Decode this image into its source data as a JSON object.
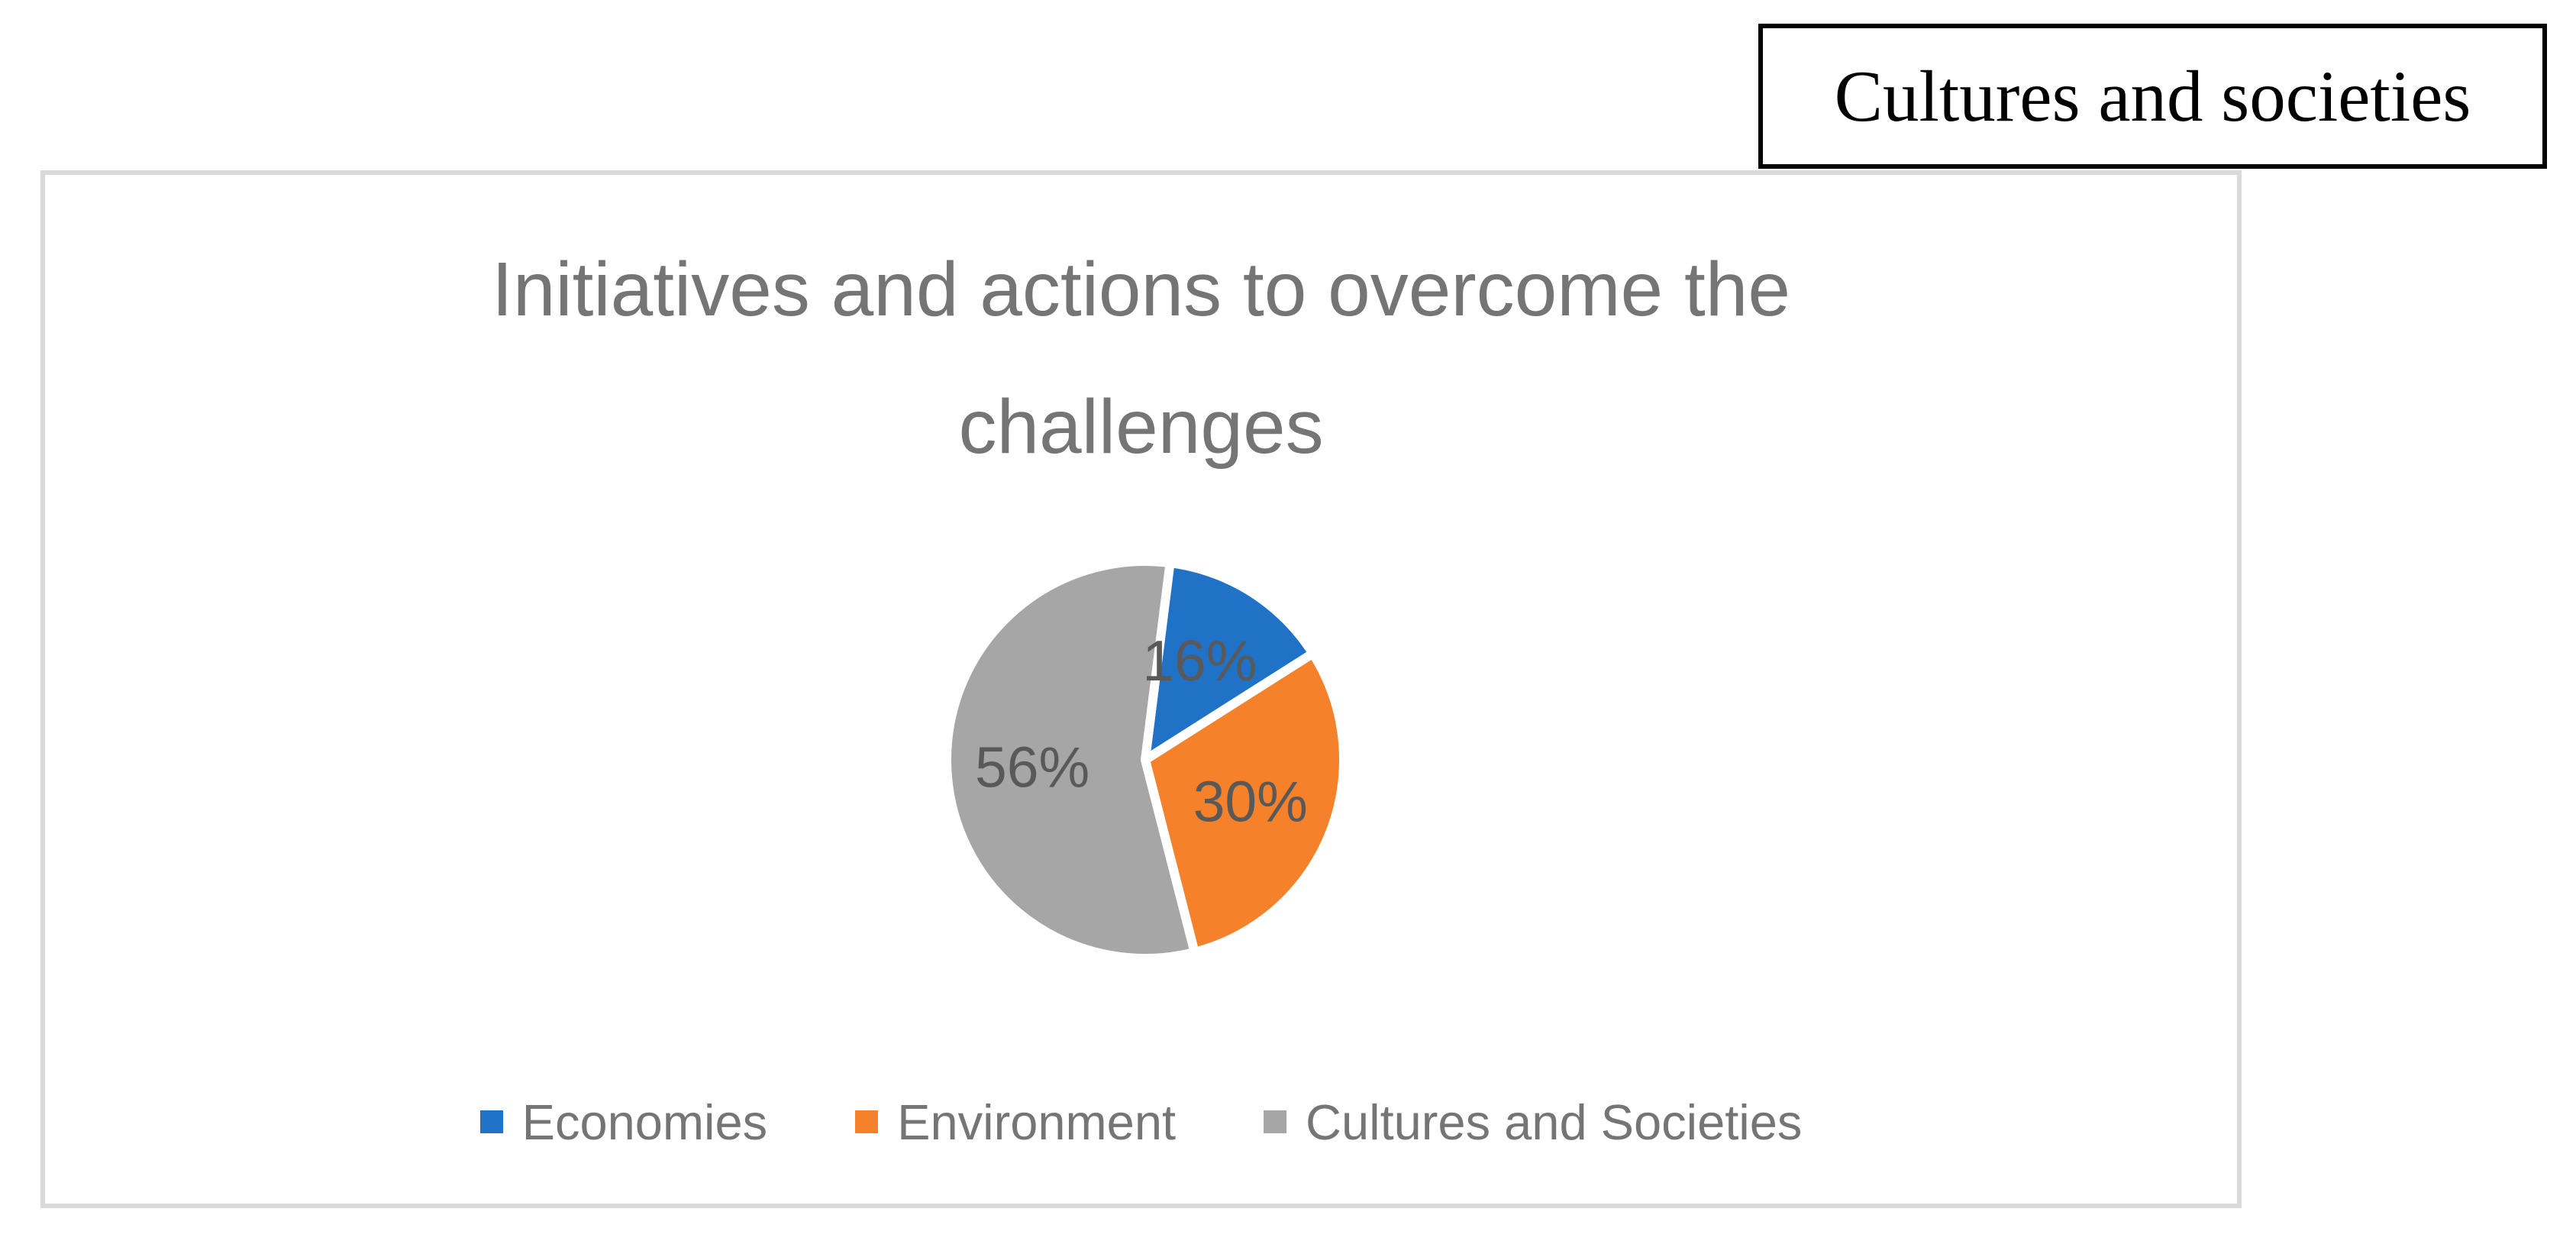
{
  "annotation_box": {
    "label": "Cultures and societies"
  },
  "chart_data": {
    "type": "pie",
    "title": "Initiatives and actions to overcome the challenges",
    "title_lines": [
      "Initiatives and actions to overcome the",
      "challenges"
    ],
    "slices": [
      {
        "label": "Economies",
        "value_pct": 16,
        "data_label": "16%",
        "color": "#1f72c6"
      },
      {
        "label": "Environment",
        "value_pct": 30,
        "data_label": "30%",
        "color": "#f5822b"
      },
      {
        "label": "Cultures and Societies",
        "value_pct": 56,
        "data_label": "56%",
        "color": "#a6a6a6"
      }
    ],
    "start_angle_deg": 0,
    "direction": "clockwise",
    "legend_position": "bottom",
    "label_radius_factor": 0.57,
    "radius_px": 260,
    "slice_gap_color": "#ffffff",
    "data_label_color": "#595959",
    "title_color": "#757575",
    "legend_text_color": "#757575",
    "frame_border_color": "#d9d9d9",
    "caption_border_color": "#000000"
  }
}
